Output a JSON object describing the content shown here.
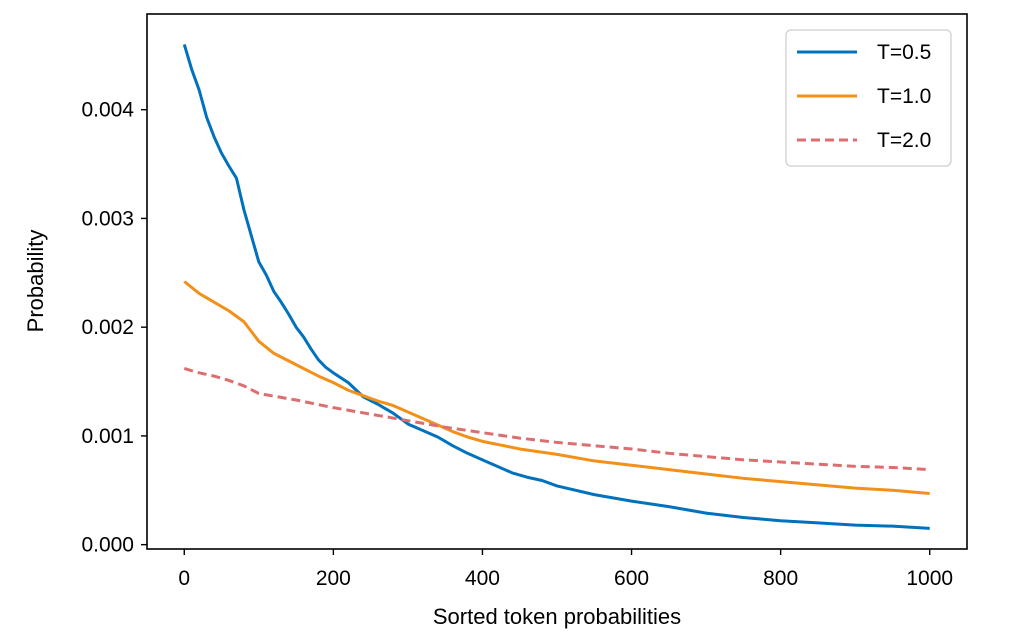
{
  "chart_data": {
    "type": "line",
    "xlabel": "Sorted token probabilities",
    "ylabel": "Probability",
    "xlim": [
      -50,
      1050
    ],
    "ylim": [
      -4e-05,
      0.00488
    ],
    "xticks": [
      0,
      200,
      400,
      600,
      800,
      1000
    ],
    "xtick_labels": [
      "0",
      "200",
      "400",
      "600",
      "800",
      "1000"
    ],
    "yticks": [
      0.0,
      0.001,
      0.002,
      0.003,
      0.004
    ],
    "ytick_labels": [
      "0.000",
      "0.001",
      "0.002",
      "0.003",
      "0.004"
    ],
    "grid": false,
    "legend_position": "top-right",
    "series": [
      {
        "name": "T=0.5",
        "color": "#0072bd",
        "dash": "solid",
        "x": [
          0,
          10,
          20,
          30,
          40,
          50,
          60,
          70,
          80,
          90,
          100,
          110,
          120,
          130,
          140,
          150,
          160,
          170,
          180,
          190,
          200,
          220,
          240,
          260,
          280,
          300,
          320,
          340,
          360,
          380,
          400,
          420,
          440,
          460,
          480,
          500,
          550,
          600,
          650,
          700,
          750,
          800,
          850,
          900,
          950,
          1000
        ],
        "y": [
          0.0046,
          0.00437,
          0.00418,
          0.00393,
          0.00375,
          0.0036,
          0.00348,
          0.00337,
          0.00308,
          0.00284,
          0.0026,
          0.00248,
          0.00233,
          0.00223,
          0.00212,
          0.002,
          0.00191,
          0.0018,
          0.0017,
          0.00163,
          0.00158,
          0.00149,
          0.00136,
          0.00129,
          0.00121,
          0.00111,
          0.00105,
          0.00099,
          0.00091,
          0.00084,
          0.00078,
          0.00072,
          0.00066,
          0.00062,
          0.00059,
          0.00054,
          0.00046,
          0.0004,
          0.00035,
          0.00029,
          0.00025,
          0.00022,
          0.0002,
          0.00018,
          0.00017,
          0.00015
        ]
      },
      {
        "name": "T=1.0",
        "color": "#f39019",
        "dash": "solid",
        "x": [
          0,
          20,
          40,
          60,
          80,
          100,
          120,
          140,
          160,
          180,
          200,
          220,
          240,
          260,
          280,
          300,
          320,
          340,
          360,
          380,
          400,
          450,
          500,
          550,
          600,
          650,
          700,
          750,
          800,
          850,
          900,
          950,
          1000
        ],
        "y": [
          0.00242,
          0.00231,
          0.00223,
          0.00215,
          0.00205,
          0.00187,
          0.00176,
          0.00169,
          0.00162,
          0.00155,
          0.00149,
          0.00142,
          0.00137,
          0.00132,
          0.00128,
          0.00122,
          0.00116,
          0.0011,
          0.00104,
          0.00099,
          0.00095,
          0.00088,
          0.00083,
          0.00077,
          0.00073,
          0.00069,
          0.00065,
          0.00061,
          0.00058,
          0.00055,
          0.00052,
          0.0005,
          0.00047
        ]
      },
      {
        "name": "T=2.0",
        "color": "#dc6e70",
        "dash": "dashed",
        "x": [
          0,
          20,
          40,
          60,
          80,
          100,
          150,
          200,
          250,
          300,
          350,
          400,
          450,
          500,
          550,
          600,
          650,
          700,
          750,
          800,
          850,
          900,
          950,
          1000
        ],
        "y": [
          0.00162,
          0.00158,
          0.00155,
          0.00151,
          0.00146,
          0.00139,
          0.00133,
          0.00126,
          0.0012,
          0.00114,
          0.00108,
          0.00103,
          0.00098,
          0.00094,
          0.00091,
          0.00088,
          0.00084,
          0.00081,
          0.00078,
          0.00076,
          0.00074,
          0.00072,
          0.00071,
          0.00069
        ]
      }
    ]
  }
}
